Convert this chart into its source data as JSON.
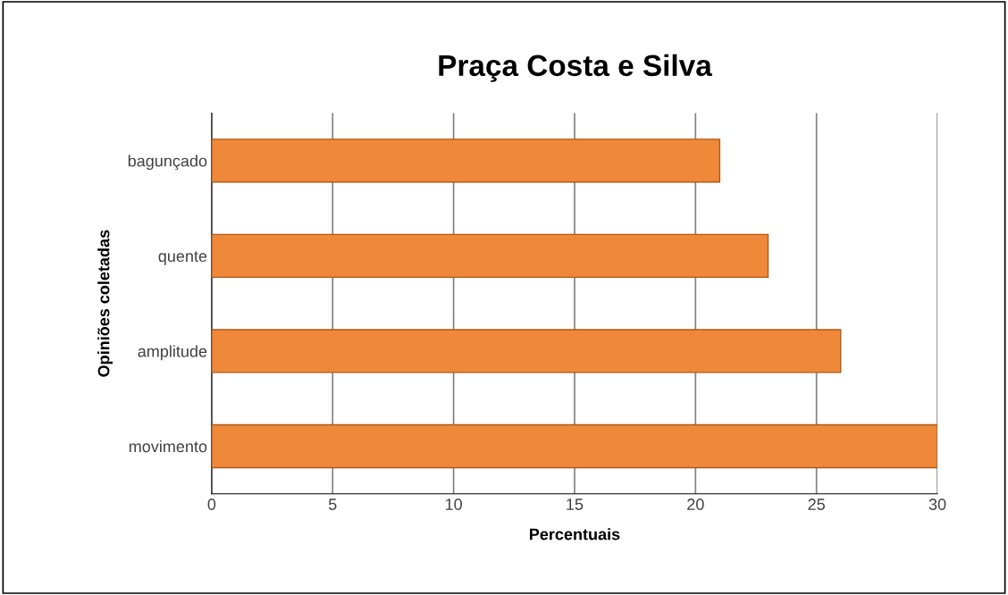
{
  "chart_data": {
    "type": "bar",
    "orientation": "horizontal",
    "title": "Praça Costa e Silva",
    "xlabel": "Percentuais",
    "ylabel": "Opiniões coletadas",
    "categories": [
      "bagunçado",
      "quente",
      "amplitude",
      "movimento"
    ],
    "values": [
      21,
      23,
      26,
      30
    ],
    "color": "#f0883a",
    "xlim": [
      0,
      30
    ],
    "xticks": [
      0,
      5,
      10,
      15,
      20,
      25,
      30
    ],
    "grid": "x",
    "legend": false
  }
}
